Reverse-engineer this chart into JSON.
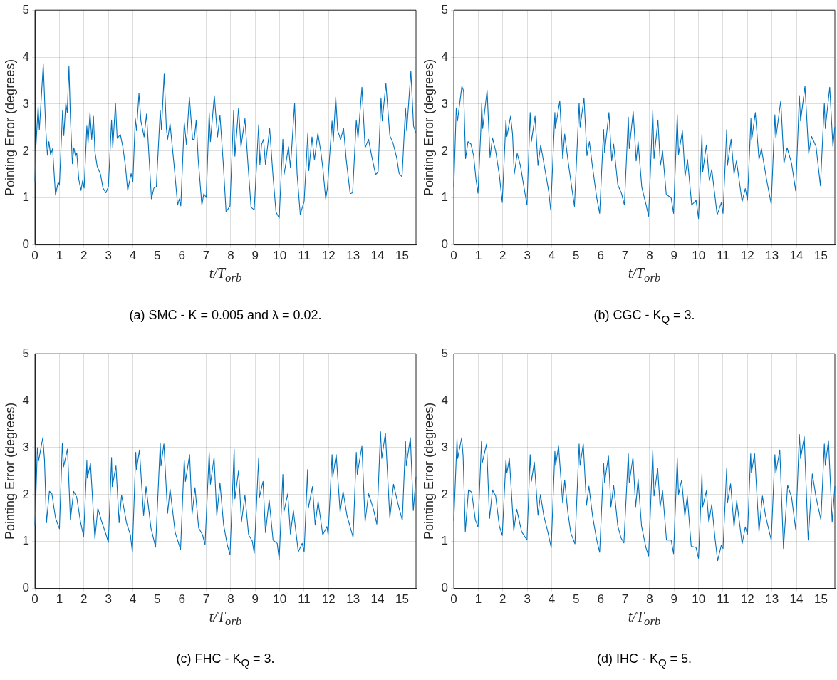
{
  "chart_data": [
    {
      "type": "line",
      "xlabel": "t/T$_{orb}$",
      "ylabel": "Pointing Error (degrees)",
      "annotations": [
        "(a) SMC - K = 0.005 and λ = 0.02."
      ],
      "color": "#0072bd",
      "grid": true,
      "xlim": [
        0,
        15.57
      ],
      "ylim": [
        0,
        5
      ],
      "xticks": [
        0,
        1,
        2,
        3,
        4,
        5,
        6,
        7,
        8,
        9,
        10,
        11,
        12,
        13,
        14,
        15
      ],
      "yticks": [
        0,
        1,
        2,
        3,
        4,
        5
      ],
      "x": [
        0,
        0.03,
        0.13,
        0.18,
        0.34,
        0.44,
        0.51,
        0.57,
        0.64,
        0.72,
        0.84,
        0.95,
        1.0,
        1.13,
        1.18,
        1.26,
        1.32,
        1.39,
        1.45,
        1.53,
        1.59,
        1.66,
        1.71,
        1.79,
        1.88,
        1.95,
        2.01,
        2.12,
        2.17,
        2.25,
        2.32,
        2.39,
        2.45,
        2.54,
        2.68,
        2.78,
        2.9,
        3.0,
        3.13,
        3.18,
        3.29,
        3.36,
        3.49,
        3.59,
        3.69,
        3.79,
        3.93,
        4.0,
        4.1,
        4.15,
        4.25,
        4.33,
        4.46,
        4.56,
        4.66,
        4.76,
        4.86,
        4.96,
        5.12,
        5.17,
        5.28,
        5.37,
        5.42,
        5.52,
        5.68,
        5.83,
        5.9,
        5.96,
        6.1,
        6.19,
        6.31,
        6.44,
        6.51,
        6.59,
        6.67,
        6.82,
        6.9,
        7.0,
        7.12,
        7.17,
        7.33,
        7.46,
        7.56,
        7.69,
        7.81,
        7.97,
        8.12,
        8.17,
        8.32,
        8.42,
        8.58,
        8.71,
        8.83,
        8.96,
        9.14,
        9.19,
        9.26,
        9.34,
        9.42,
        9.59,
        9.73,
        9.85,
        9.98,
        10.13,
        10.18,
        10.36,
        10.44,
        10.61,
        10.71,
        10.84,
        11.0,
        11.15,
        11.19,
        11.32,
        11.42,
        11.56,
        11.68,
        11.76,
        11.88,
        11.95,
        12.14,
        12.19,
        12.29,
        12.37,
        12.49,
        12.61,
        12.72,
        12.88,
        12.98,
        13.13,
        13.2,
        13.36,
        13.49,
        13.63,
        13.76,
        13.92,
        14.02,
        14.14,
        14.19,
        14.34,
        14.5,
        14.63,
        14.78,
        14.88,
        15.0,
        15.14,
        15.19,
        15.36,
        15.47,
        15.57
      ],
      "values": [
        1.34,
        2.0,
        2.95,
        2.45,
        3.85,
        2.48,
        1.91,
        2.2,
        1.92,
        2.05,
        1.06,
        1.34,
        1.27,
        2.87,
        2.33,
        3.02,
        2.82,
        3.8,
        2.69,
        1.73,
        2.07,
        1.89,
        1.96,
        1.4,
        1.16,
        1.37,
        1.21,
        2.53,
        2.17,
        2.82,
        2.25,
        2.74,
        1.99,
        1.68,
        1.5,
        1.21,
        1.11,
        1.24,
        2.66,
        2.07,
        3.02,
        2.27,
        2.35,
        2.09,
        1.71,
        1.16,
        1.52,
        1.34,
        2.69,
        2.43,
        3.23,
        2.64,
        2.3,
        2.79,
        1.89,
        0.98,
        1.21,
        1.24,
        2.87,
        2.45,
        3.64,
        2.48,
        2.25,
        2.58,
        1.73,
        0.85,
        0.98,
        0.83,
        2.61,
        2.14,
        3.15,
        2.25,
        2.25,
        2.66,
        1.83,
        0.85,
        1.09,
        1.01,
        2.82,
        2.2,
        3.18,
        2.3,
        2.76,
        1.78,
        0.7,
        0.83,
        2.87,
        1.89,
        2.92,
        2.09,
        2.69,
        1.68,
        0.8,
        0.75,
        2.56,
        1.71,
        2.14,
        2.25,
        1.71,
        2.48,
        1.45,
        0.7,
        0.57,
        2.25,
        1.5,
        2.09,
        1.65,
        3.02,
        1.52,
        0.65,
        0.93,
        2.38,
        1.58,
        2.3,
        1.81,
        2.38,
        1.99,
        1.65,
        0.98,
        1.21,
        2.64,
        2.2,
        3.15,
        2.43,
        2.25,
        2.48,
        1.81,
        1.09,
        1.11,
        2.66,
        2.27,
        3.36,
        2.07,
        2.25,
        1.89,
        1.5,
        1.55,
        3.13,
        2.64,
        3.44,
        2.33,
        2.17,
        1.86,
        1.52,
        1.45,
        2.92,
        2.43,
        3.7,
        2.53,
        2.38
      ]
    },
    {
      "type": "line",
      "xlabel": "t/T$_{orb}$",
      "ylabel": "Pointing Error (degrees)",
      "annotations": [
        "(b) CGC - K$_{Q}$ = 3."
      ],
      "color": "#0072bd",
      "grid": true,
      "xlim": [
        0,
        15.57
      ],
      "ylim": [
        0,
        5
      ],
      "xticks": [
        0,
        1,
        2,
        3,
        4,
        5,
        6,
        7,
        8,
        9,
        10,
        11,
        12,
        13,
        14,
        15
      ],
      "yticks": [
        0,
        1,
        2,
        3,
        4,
        5
      ],
      "x": [
        0,
        0.1,
        0.15,
        0.33,
        0.4,
        0.48,
        0.58,
        0.7,
        0.81,
        0.91,
        0.99,
        1.11,
        1.14,
        1.18,
        1.36,
        1.48,
        1.58,
        1.71,
        1.86,
        1.98,
        2.13,
        2.17,
        2.32,
        2.4,
        2.47,
        2.59,
        2.72,
        2.85,
        2.99,
        3.12,
        3.17,
        3.32,
        3.44,
        3.55,
        3.73,
        3.88,
        3.96,
        4.13,
        4.15,
        4.33,
        4.45,
        4.53,
        4.68,
        4.83,
        4.93,
        5.12,
        5.16,
        5.32,
        5.44,
        5.54,
        5.66,
        5.84,
        5.96,
        6.12,
        6.16,
        6.34,
        6.45,
        6.53,
        6.7,
        6.85,
        6.97,
        7.13,
        7.17,
        7.33,
        7.45,
        7.53,
        7.68,
        7.85,
        7.96,
        8.13,
        8.18,
        8.34,
        8.44,
        8.53,
        8.68,
        8.88,
        8.98,
        9.13,
        9.18,
        9.34,
        9.45,
        9.55,
        9.72,
        9.9,
        10.0,
        10.14,
        10.17,
        10.32,
        10.44,
        10.54,
        10.76,
        10.93,
        11.0,
        11.15,
        11.18,
        11.33,
        11.45,
        11.55,
        11.78,
        11.91,
        12.0,
        12.14,
        12.17,
        12.32,
        12.47,
        12.57,
        12.79,
        12.97,
        13.12,
        13.16,
        13.36,
        13.49,
        13.62,
        13.8,
        13.97,
        14.12,
        14.17,
        14.35,
        14.5,
        14.62,
        14.8,
        14.98,
        15.14,
        15.18,
        15.36,
        15.49,
        15.57
      ],
      "values": [
        1.23,
        2.92,
        2.64,
        3.38,
        3.28,
        1.84,
        2.2,
        2.15,
        1.9,
        1.38,
        1.1,
        2.51,
        3.02,
        2.48,
        3.3,
        1.87,
        2.28,
        2.0,
        1.49,
        0.9,
        2.66,
        2.31,
        2.74,
        2.36,
        1.51,
        1.95,
        1.69,
        1.28,
        0.85,
        2.82,
        2.2,
        2.74,
        1.69,
        2.13,
        1.59,
        1.13,
        0.74,
        2.82,
        2.48,
        3.07,
        1.84,
        2.36,
        1.74,
        1.18,
        0.82,
        3.02,
        2.51,
        3.13,
        1.9,
        2.2,
        1.69,
        1.0,
        0.67,
        2.46,
        1.97,
        2.82,
        1.79,
        2.15,
        1.28,
        1.1,
        0.85,
        2.72,
        2.05,
        2.84,
        1.79,
        2.2,
        1.23,
        0.87,
        0.61,
        2.87,
        1.84,
        2.66,
        1.69,
        2.0,
        1.08,
        1.0,
        0.67,
        2.77,
        1.92,
        2.43,
        1.46,
        1.82,
        0.85,
        0.95,
        0.56,
        2.36,
        1.56,
        2.13,
        1.36,
        1.61,
        0.64,
        0.9,
        0.67,
        2.46,
        1.69,
        2.25,
        1.51,
        1.79,
        0.92,
        1.2,
        0.95,
        2.69,
        2.23,
        2.82,
        1.82,
        2.05,
        1.36,
        0.87,
        2.77,
        2.28,
        3.07,
        1.74,
        2.07,
        1.74,
        1.15,
        3.18,
        2.64,
        3.38,
        1.95,
        2.31,
        2.1,
        1.26,
        3.02,
        2.48,
        3.36,
        2.1,
        2.51
      ]
    },
    {
      "type": "line",
      "xlabel": "t/T$_{orb}$",
      "ylabel": "Pointing Error (degrees)",
      "annotations": [
        "(c) FHC - K$_{Q}$ = 3."
      ],
      "color": "#0072bd",
      "grid": true,
      "xlim": [
        0,
        15.57
      ],
      "ylim": [
        0,
        5
      ],
      "xticks": [
        0,
        1,
        2,
        3,
        4,
        5,
        6,
        7,
        8,
        9,
        10,
        11,
        12,
        13,
        14,
        15
      ],
      "yticks": [
        0,
        1,
        2,
        3,
        4,
        5
      ],
      "x": [
        0,
        0.1,
        0.15,
        0.32,
        0.39,
        0.47,
        0.59,
        0.69,
        0.84,
        1.0,
        1.12,
        1.17,
        1.33,
        1.45,
        1.58,
        1.71,
        1.86,
        1.99,
        2.12,
        2.14,
        2.27,
        2.45,
        2.57,
        2.73,
        2.91,
        3.0,
        3.13,
        3.16,
        3.31,
        3.44,
        3.54,
        3.74,
        3.9,
        3.98,
        4.12,
        4.15,
        4.27,
        4.44,
        4.54,
        4.74,
        4.93,
        5.12,
        5.15,
        5.27,
        5.42,
        5.52,
        5.73,
        5.95,
        6.1,
        6.15,
        6.32,
        6.42,
        6.54,
        6.69,
        6.85,
        6.95,
        7.12,
        7.17,
        7.32,
        7.43,
        7.56,
        7.71,
        7.86,
        7.97,
        8.14,
        8.17,
        8.32,
        8.44,
        8.58,
        8.73,
        8.88,
        8.96,
        9.14,
        9.17,
        9.32,
        9.42,
        9.57,
        9.73,
        9.9,
        9.98,
        10.13,
        10.17,
        10.33,
        10.44,
        10.56,
        10.76,
        10.92,
        11.0,
        11.14,
        11.17,
        11.34,
        11.45,
        11.57,
        11.76,
        11.93,
        11.98,
        12.14,
        12.17,
        12.31,
        12.47,
        12.59,
        12.75,
        13.0,
        13.13,
        13.17,
        13.36,
        13.49,
        13.63,
        13.82,
        13.97,
        14.12,
        14.17,
        14.32,
        14.5,
        14.65,
        14.83,
        15.01,
        15.14,
        15.17,
        15.34,
        15.46,
        15.57
      ],
      "values": [
        1.35,
        3.0,
        2.72,
        3.21,
        2.74,
        1.4,
        2.07,
        2.02,
        1.5,
        1.27,
        3.1,
        2.59,
        2.97,
        1.47,
        2.07,
        1.94,
        1.42,
        1.11,
        2.72,
        2.35,
        2.66,
        1.06,
        1.71,
        1.42,
        1.14,
        0.98,
        2.79,
        2.17,
        2.61,
        1.4,
        1.99,
        1.4,
        1.14,
        0.78,
        2.9,
        2.53,
        2.95,
        1.55,
        2.17,
        1.29,
        0.88,
        3.1,
        2.61,
        3.08,
        1.6,
        2.12,
        1.19,
        0.83,
        2.74,
        2.28,
        2.85,
        1.58,
        2.15,
        1.29,
        1.14,
        0.93,
        2.9,
        2.22,
        2.79,
        1.55,
        2.25,
        1.35,
        0.93,
        0.72,
        2.97,
        1.91,
        2.51,
        1.42,
        1.99,
        1.14,
        1.01,
        0.75,
        2.77,
        1.94,
        2.28,
        1.19,
        1.89,
        1.03,
        0.96,
        0.62,
        2.43,
        1.63,
        2.02,
        1.16,
        1.66,
        0.78,
        0.96,
        0.78,
        2.53,
        1.71,
        2.17,
        1.35,
        1.86,
        1.14,
        1.32,
        1.14,
        2.85,
        2.38,
        2.85,
        1.63,
        2.07,
        1.55,
        1.09,
        2.9,
        2.43,
        3.03,
        1.42,
        2.02,
        1.71,
        1.37,
        3.34,
        2.77,
        3.31,
        1.5,
        2.22,
        1.81,
        1.45,
        3.13,
        2.61,
        3.21,
        1.66,
        2.38
      ]
    },
    {
      "type": "line",
      "xlabel": "t/T$_{orb}$",
      "ylabel": "Pointing Error (degrees)",
      "annotations": [
        "(d) IHC - K$_{Q}$ = 5."
      ],
      "color": "#0072bd",
      "grid": true,
      "xlim": [
        0,
        15.57
      ],
      "ylim": [
        0,
        5
      ],
      "xticks": [
        0,
        1,
        2,
        3,
        4,
        5,
        6,
        7,
        8,
        9,
        10,
        11,
        12,
        13,
        14,
        15
      ],
      "yticks": [
        0,
        1,
        2,
        3,
        4,
        5
      ],
      "x": [
        0,
        0.13,
        0.16,
        0.32,
        0.38,
        0.47,
        0.6,
        0.73,
        0.88,
        0.99,
        1.13,
        1.16,
        1.34,
        1.46,
        1.58,
        1.71,
        1.86,
        1.98,
        2.13,
        2.17,
        2.27,
        2.45,
        2.57,
        2.77,
        2.99,
        3.12,
        3.17,
        3.29,
        3.44,
        3.54,
        3.68,
        3.83,
        3.98,
        4.13,
        4.16,
        4.28,
        4.45,
        4.53,
        4.66,
        4.78,
        4.95,
        5.12,
        5.16,
        5.29,
        5.42,
        5.52,
        5.67,
        5.84,
        5.96,
        6.12,
        6.16,
        6.32,
        6.42,
        6.53,
        6.7,
        6.83,
        6.95,
        7.13,
        7.17,
        7.32,
        7.43,
        7.53,
        7.67,
        7.85,
        7.96,
        8.13,
        8.18,
        8.33,
        8.43,
        8.53,
        8.69,
        8.88,
        8.98,
        9.13,
        9.18,
        9.31,
        9.44,
        9.54,
        9.7,
        9.9,
        10.0,
        10.14,
        10.17,
        10.32,
        10.42,
        10.54,
        10.67,
        10.78,
        10.93,
        11.0,
        11.15,
        11.18,
        11.31,
        11.45,
        11.56,
        11.78,
        11.91,
        12.0,
        12.13,
        12.16,
        12.29,
        12.47,
        12.61,
        12.74,
        12.97,
        13.12,
        13.16,
        13.32,
        13.47,
        13.64,
        13.8,
        13.97,
        14.12,
        14.17,
        14.32,
        14.48,
        14.65,
        14.8,
        15.0,
        15.14,
        15.18,
        15.31,
        15.46,
        15.57
      ],
      "values": [
        1.44,
        3.18,
        2.77,
        3.21,
        2.82,
        1.21,
        2.1,
        2.05,
        1.46,
        1.31,
        3.13,
        2.67,
        3.08,
        1.49,
        2.1,
        1.97,
        1.33,
        1.13,
        2.74,
        2.46,
        2.77,
        1.23,
        1.69,
        1.21,
        1.03,
        2.85,
        2.28,
        2.69,
        1.56,
        2.0,
        1.54,
        1.23,
        0.87,
        2.92,
        2.62,
        3.03,
        1.82,
        2.31,
        1.62,
        1.18,
        0.95,
        3.08,
        2.62,
        3.08,
        1.77,
        2.18,
        1.54,
        1.03,
        0.77,
        2.67,
        2.26,
        2.82,
        1.74,
        2.2,
        1.33,
        1.08,
        0.97,
        2.87,
        2.26,
        2.79,
        1.74,
        2.33,
        1.33,
        0.87,
        0.69,
        2.95,
        1.97,
        2.56,
        1.74,
        2.08,
        1.03,
        1.03,
        0.74,
        2.77,
        2.0,
        2.31,
        1.54,
        1.97,
        0.9,
        0.87,
        0.64,
        2.44,
        1.74,
        2.08,
        1.41,
        1.79,
        1.08,
        0.59,
        0.92,
        0.85,
        2.56,
        1.82,
        2.23,
        1.31,
        1.87,
        0.95,
        1.31,
        1.15,
        2.87,
        2.46,
        2.87,
        1.21,
        1.97,
        1.54,
        1.03,
        2.85,
        2.46,
        2.95,
        0.85,
        2.2,
        1.95,
        1.26,
        3.28,
        2.77,
        3.23,
        1.03,
        2.44,
        1.95,
        1.46,
        3.08,
        2.62,
        3.15,
        1.41,
        2.18
      ]
    }
  ]
}
